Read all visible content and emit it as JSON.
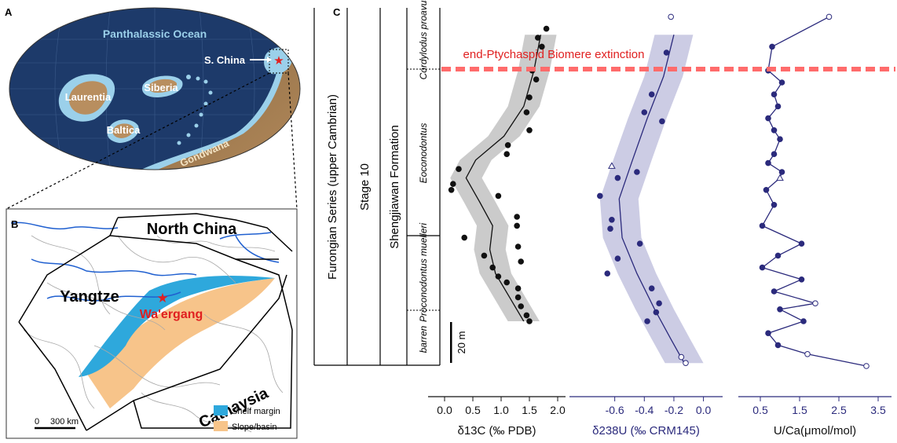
{
  "panels": {
    "a": "A",
    "b": "B",
    "c": "C"
  },
  "globe_labels": {
    "ocean": "Panthalassic Ocean",
    "laurentia": "Laurentia",
    "siberia": "Siberia",
    "baltica": "Baltica",
    "gondwana": "Gondwana",
    "s_china": "S. China"
  },
  "map_labels": {
    "north_china": "North China",
    "yangtze": "Yangtze",
    "waergang": "Wa'ergang",
    "cathaysia": "Cathaysia",
    "scale": "300 km",
    "scale_zero": "0",
    "legend": [
      {
        "label": "Shelf margin",
        "color": "#2ea8dc"
      },
      {
        "label": "Slope/basin",
        "color": "#f7c48a"
      }
    ]
  },
  "strat": {
    "series": "Furongian Series (upper Cambrian)",
    "stage": "Stage 10",
    "formation": "Shengjiawan Formation",
    "zones": [
      "Cordylodus proavus",
      "Eoconodontus",
      "Proconodontus muelleri",
      "barren"
    ],
    "scale_bar": "20 m",
    "extinction": "end-Ptychaspid Biomere extinction"
  },
  "colors": {
    "carbon": "#111111",
    "uranium": "#2b2a7c",
    "band_c": "#c8c8c8",
    "band_u": "#c9c9e3",
    "extinction": "#ff6b6b"
  },
  "chart_data": [
    {
      "type": "scatter",
      "xlabel": "δ13C (‰ PDB)",
      "xticks": [
        "0.0",
        "0.5",
        "1.0",
        "1.5",
        "2.0"
      ],
      "xlim": [
        0,
        2.0
      ],
      "y_unit": "m",
      "points": [
        [
          1.8,
          92
        ],
        [
          1.65,
          89
        ],
        [
          1.72,
          86
        ],
        [
          1.55,
          78
        ],
        [
          1.62,
          75
        ],
        [
          1.5,
          69
        ],
        [
          1.45,
          64
        ],
        [
          1.5,
          58
        ],
        [
          1.12,
          53
        ],
        [
          1.1,
          50
        ],
        [
          0.25,
          45
        ],
        [
          0.15,
          40
        ],
        [
          0.12,
          38
        ],
        [
          0.95,
          36
        ],
        [
          1.28,
          29
        ],
        [
          1.28,
          26
        ],
        [
          0.35,
          22
        ],
        [
          1.3,
          19
        ],
        [
          0.7,
          16
        ],
        [
          1.35,
          14
        ],
        [
          0.85,
          12
        ],
        [
          0.95,
          9
        ],
        [
          1.1,
          7
        ],
        [
          1.3,
          5
        ],
        [
          1.3,
          2
        ],
        [
          1.35,
          -1
        ],
        [
          1.45,
          -4
        ],
        [
          1.5,
          -6
        ]
      ],
      "trend": [
        [
          1.7,
          90
        ],
        [
          1.58,
          78
        ],
        [
          1.4,
          66
        ],
        [
          1.05,
          56
        ],
        [
          0.55,
          48
        ],
        [
          0.38,
          42
        ],
        [
          0.62,
          34
        ],
        [
          0.85,
          26
        ],
        [
          0.8,
          18
        ],
        [
          0.9,
          10
        ],
        [
          1.15,
          2
        ],
        [
          1.4,
          -6
        ]
      ]
    },
    {
      "type": "scatter",
      "xlabel": "δ238U (‰ CRM145)",
      "xticks": [
        "-0.6",
        "-0.4",
        "-0.2",
        "0.0"
      ],
      "xlim": [
        -0.8,
        0.05
      ],
      "y_unit": "m",
      "points": [
        [
          -0.22,
          96
        ],
        [
          -0.25,
          84
        ],
        [
          -0.35,
          70
        ],
        [
          -0.4,
          64
        ],
        [
          -0.28,
          61
        ],
        [
          -0.45,
          44
        ],
        [
          -0.58,
          42
        ],
        [
          -0.7,
          36
        ],
        [
          -0.62,
          28
        ],
        [
          -0.63,
          25
        ],
        [
          -0.43,
          20
        ],
        [
          -0.58,
          15
        ],
        [
          -0.65,
          10
        ],
        [
          -0.35,
          5
        ],
        [
          -0.3,
          0
        ],
        [
          -0.32,
          -3
        ],
        [
          -0.38,
          -6
        ],
        [
          -0.15,
          -18
        ],
        [
          -0.12,
          -20
        ]
      ],
      "open_points": [
        [
          -0.22,
          96
        ],
        [
          -0.28,
          -4
        ],
        [
          -0.15,
          -18
        ],
        [
          -0.12,
          -20
        ]
      ],
      "triangle_points": [
        [
          -0.62,
          46
        ]
      ],
      "trend": [
        [
          -0.2,
          90
        ],
        [
          -0.27,
          76
        ],
        [
          -0.38,
          62
        ],
        [
          -0.48,
          48
        ],
        [
          -0.57,
          35
        ],
        [
          -0.55,
          22
        ],
        [
          -0.45,
          10
        ],
        [
          -0.33,
          -2
        ],
        [
          -0.22,
          -12
        ],
        [
          -0.13,
          -20
        ]
      ]
    },
    {
      "type": "line",
      "xlabel": "U/Ca(μmol/mol)",
      "xticks": [
        "0.5",
        "1.5",
        "2.5",
        "3.5"
      ],
      "xlim": [
        0.3,
        3.7
      ],
      "y_unit": "m",
      "points": [
        [
          2.25,
          96
        ],
        [
          0.8,
          86
        ],
        [
          0.7,
          78
        ],
        [
          1.05,
          74
        ],
        [
          0.85,
          70
        ],
        [
          0.95,
          66
        ],
        [
          0.7,
          62
        ],
        [
          0.85,
          58
        ],
        [
          1.0,
          55
        ],
        [
          0.85,
          50
        ],
        [
          0.7,
          47
        ],
        [
          1.05,
          44
        ],
        [
          1.0,
          42
        ],
        [
          0.65,
          38
        ],
        [
          0.85,
          33
        ],
        [
          0.55,
          26
        ],
        [
          1.55,
          20
        ],
        [
          0.95,
          16
        ],
        [
          0.55,
          12
        ],
        [
          1.55,
          8
        ],
        [
          0.85,
          4
        ],
        [
          1.9,
          0
        ],
        [
          1.0,
          -2
        ],
        [
          1.6,
          -6
        ],
        [
          0.7,
          -10
        ],
        [
          0.95,
          -14
        ],
        [
          1.7,
          -17
        ],
        [
          3.2,
          -21
        ]
      ],
      "open_points": [
        [
          2.25,
          96
        ],
        [
          1.9,
          0
        ],
        [
          1.7,
          -17
        ],
        [
          3.2,
          -21
        ]
      ],
      "triangle_points": [
        [
          1.0,
          42
        ]
      ]
    }
  ]
}
